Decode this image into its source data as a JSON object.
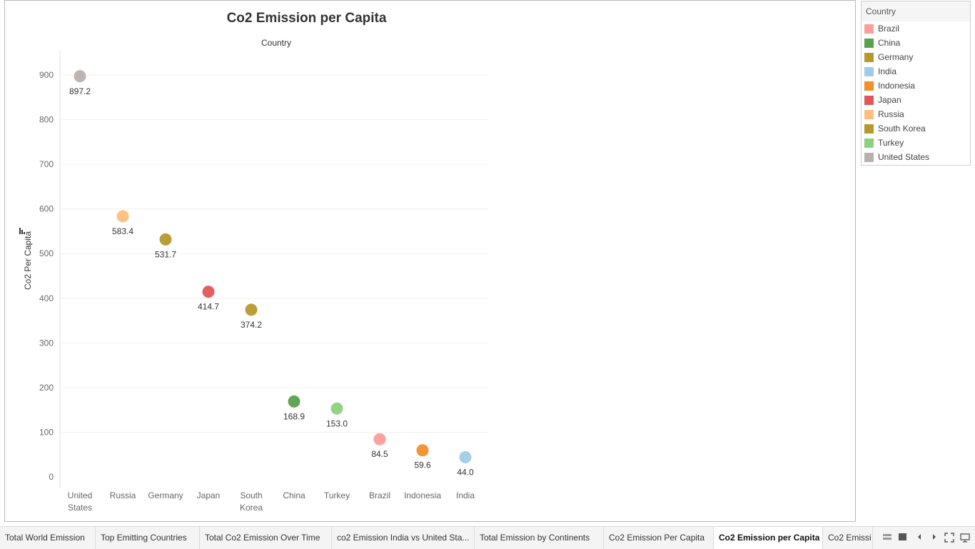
{
  "chart_data": {
    "type": "scatter",
    "title": "Co2 Emission per Capita",
    "column_header": "Country",
    "ylabel": "Co2 Per Capita",
    "ylim": [
      0,
      960
    ],
    "yticks": [
      0,
      100,
      200,
      300,
      400,
      500,
      600,
      700,
      800,
      900
    ],
    "grid": true,
    "legend_position": "right",
    "categories": [
      {
        "label": [
          "United",
          "States"
        ],
        "value": 897.2,
        "value_label": "897.2",
        "color": "#bab0ac"
      },
      {
        "label": [
          "Russia"
        ],
        "value": 583.4,
        "value_label": "583.4",
        "color": "#ffbe7d"
      },
      {
        "label": [
          "Germany"
        ],
        "value": 531.7,
        "value_label": "531.7",
        "color": "#b6992d"
      },
      {
        "label": [
          "Japan"
        ],
        "value": 414.7,
        "value_label": "414.7",
        "color": "#e15759"
      },
      {
        "label": [
          "South",
          "Korea"
        ],
        "value": 374.2,
        "value_label": "374.2",
        "color": "#b6992d"
      },
      {
        "label": [
          "China"
        ],
        "value": 168.9,
        "value_label": "168.9",
        "color": "#59a14f"
      },
      {
        "label": [
          "Turkey"
        ],
        "value": 153.0,
        "value_label": "153.0",
        "color": "#8cd17d"
      },
      {
        "label": [
          "Brazil"
        ],
        "value": 84.5,
        "value_label": "84.5",
        "color": "#ff9d9a"
      },
      {
        "label": [
          "Indonesia"
        ],
        "value": 59.6,
        "value_label": "59.6",
        "color": "#f28e2b"
      },
      {
        "label": [
          "India"
        ],
        "value": 44.0,
        "value_label": "44.0",
        "color": "#a0cbe8"
      }
    ]
  },
  "legend": {
    "title": "Country",
    "items": [
      {
        "label": "Brazil",
        "color": "#ff9d9a"
      },
      {
        "label": "China",
        "color": "#59a14f"
      },
      {
        "label": "Germany",
        "color": "#b6992d"
      },
      {
        "label": "India",
        "color": "#a0cbe8"
      },
      {
        "label": "Indonesia",
        "color": "#f28e2b"
      },
      {
        "label": "Japan",
        "color": "#e15759"
      },
      {
        "label": "Russia",
        "color": "#ffbe7d"
      },
      {
        "label": "South Korea",
        "color": "#b6992d"
      },
      {
        "label": "Turkey",
        "color": "#8cd17d"
      },
      {
        "label": "United States",
        "color": "#bab0ac"
      }
    ]
  },
  "tabs": [
    {
      "label": "Total World Emission"
    },
    {
      "label": "Top Emitting Countries"
    },
    {
      "label": "Total Co2 Emission Over Time"
    },
    {
      "label": "co2 Emission India vs United Sta..."
    },
    {
      "label": "Total Emission by Continents"
    },
    {
      "label": "Co2 Emission Per Capita"
    },
    {
      "label": "Co2 Emission per Capita",
      "active": true
    },
    {
      "label": "Co2 Emissi"
    }
  ],
  "nav_icons": [
    "grid-view-icon",
    "single-view-icon",
    "previous-icon",
    "next-icon",
    "fullscreen-icon",
    "present-icon"
  ]
}
